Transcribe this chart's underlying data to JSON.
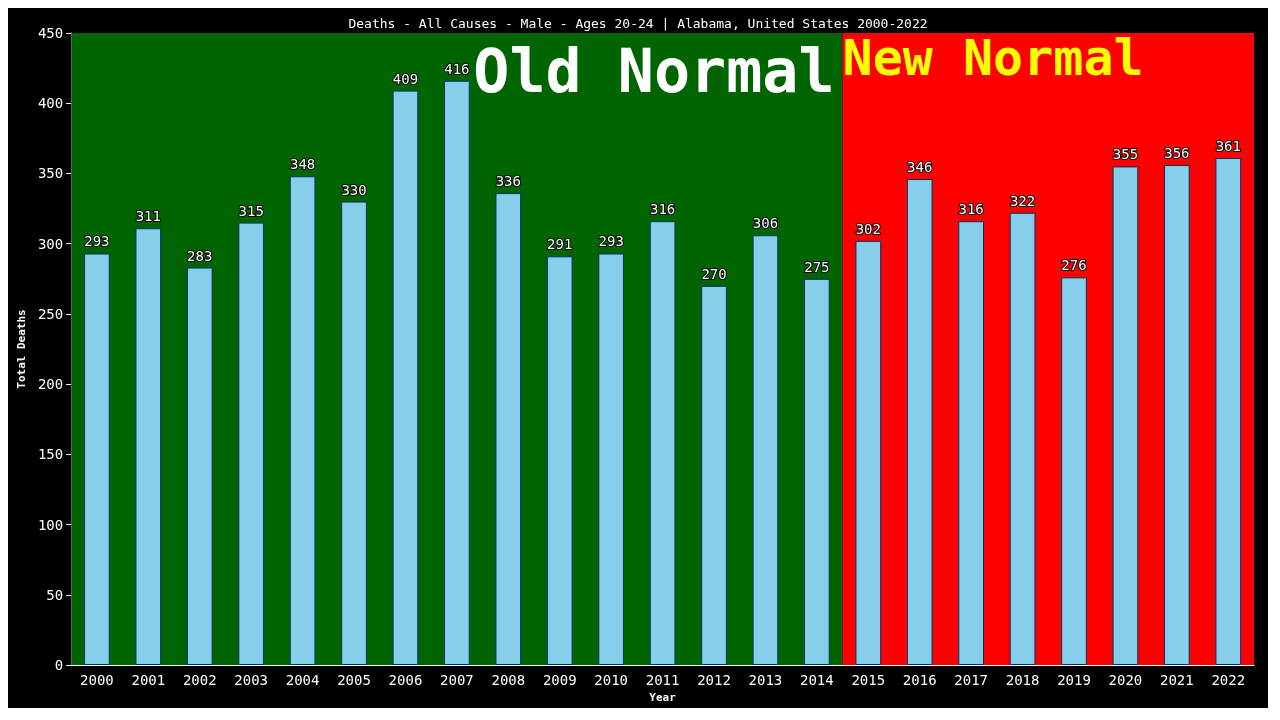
{
  "chart_data": {
    "type": "bar",
    "title": "Deaths - All Causes - Male - Ages 20-24 | Alabama, United States 2000-2022",
    "xlabel": "Year",
    "ylabel": "Total Deaths",
    "categories": [
      "2000",
      "2001",
      "2002",
      "2003",
      "2004",
      "2005",
      "2006",
      "2007",
      "2008",
      "2009",
      "2010",
      "2011",
      "2012",
      "2013",
      "2014",
      "2015",
      "2016",
      "2017",
      "2018",
      "2019",
      "2020",
      "2021",
      "2022"
    ],
    "values": [
      293,
      311,
      283,
      315,
      348,
      330,
      409,
      416,
      336,
      291,
      293,
      316,
      270,
      306,
      275,
      302,
      346,
      316,
      322,
      276,
      355,
      356,
      361
    ],
    "color": "#87ceeb",
    "data_labels": true,
    "ylim": [
      0,
      450
    ],
    "yticks": [
      0,
      50,
      100,
      150,
      200,
      250,
      300,
      350,
      400,
      450
    ],
    "grid": false,
    "bands": [
      {
        "axis": "x",
        "from": "2000",
        "to": "2014",
        "label": "Old Normal",
        "color": "#006400"
      },
      {
        "axis": "x",
        "from": "2015",
        "to": "2022",
        "label": "New Normal",
        "color": "#ff0000"
      }
    ]
  }
}
